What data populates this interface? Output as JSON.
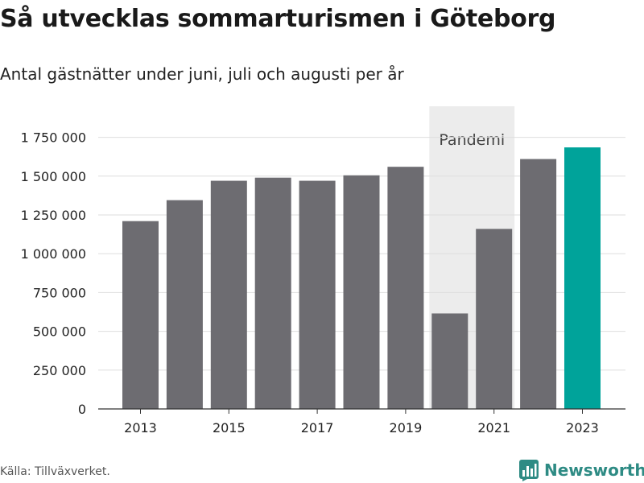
{
  "header": {
    "title": "Så utvecklas sommarturismen i Göteborg",
    "subtitle": "Antal gästnätter under juni, juli och augusti per år"
  },
  "footer": {
    "source": "Källa: Tillväxverket.",
    "brand": "Newsworthy",
    "brand_icon": "bar-chart-logo-icon"
  },
  "colors": {
    "bar": "#6d6c71",
    "highlight": "#00a39a",
    "pandemic_band": "#ececec",
    "grid": "#dedede",
    "brand": "#2e8b84"
  },
  "chart_data": {
    "type": "bar",
    "x": [
      2013,
      2014,
      2015,
      2016,
      2017,
      2018,
      2019,
      2020,
      2021,
      2022,
      2023
    ],
    "values": [
      1210000,
      1345000,
      1470000,
      1490000,
      1470000,
      1505000,
      1560000,
      615000,
      1160000,
      1610000,
      1685000
    ],
    "highlight_index": 10,
    "xticks": [
      "2013",
      "2015",
      "2017",
      "2019",
      "2021",
      "2023"
    ],
    "xtick_values": [
      2013,
      2015,
      2017,
      2019,
      2021,
      2023
    ],
    "yticks": [
      "0",
      "250 000",
      "500 000",
      "750 000",
      "1 000 000",
      "1 250 000",
      "1 500 000",
      "1 750 000"
    ],
    "ytick_values": [
      0,
      250000,
      500000,
      750000,
      1000000,
      1250000,
      1500000,
      1750000
    ],
    "ylim": [
      0,
      1950000
    ],
    "grid": true,
    "annotation": {
      "label": "Pandemi",
      "x_range": [
        2020,
        2021
      ]
    }
  }
}
